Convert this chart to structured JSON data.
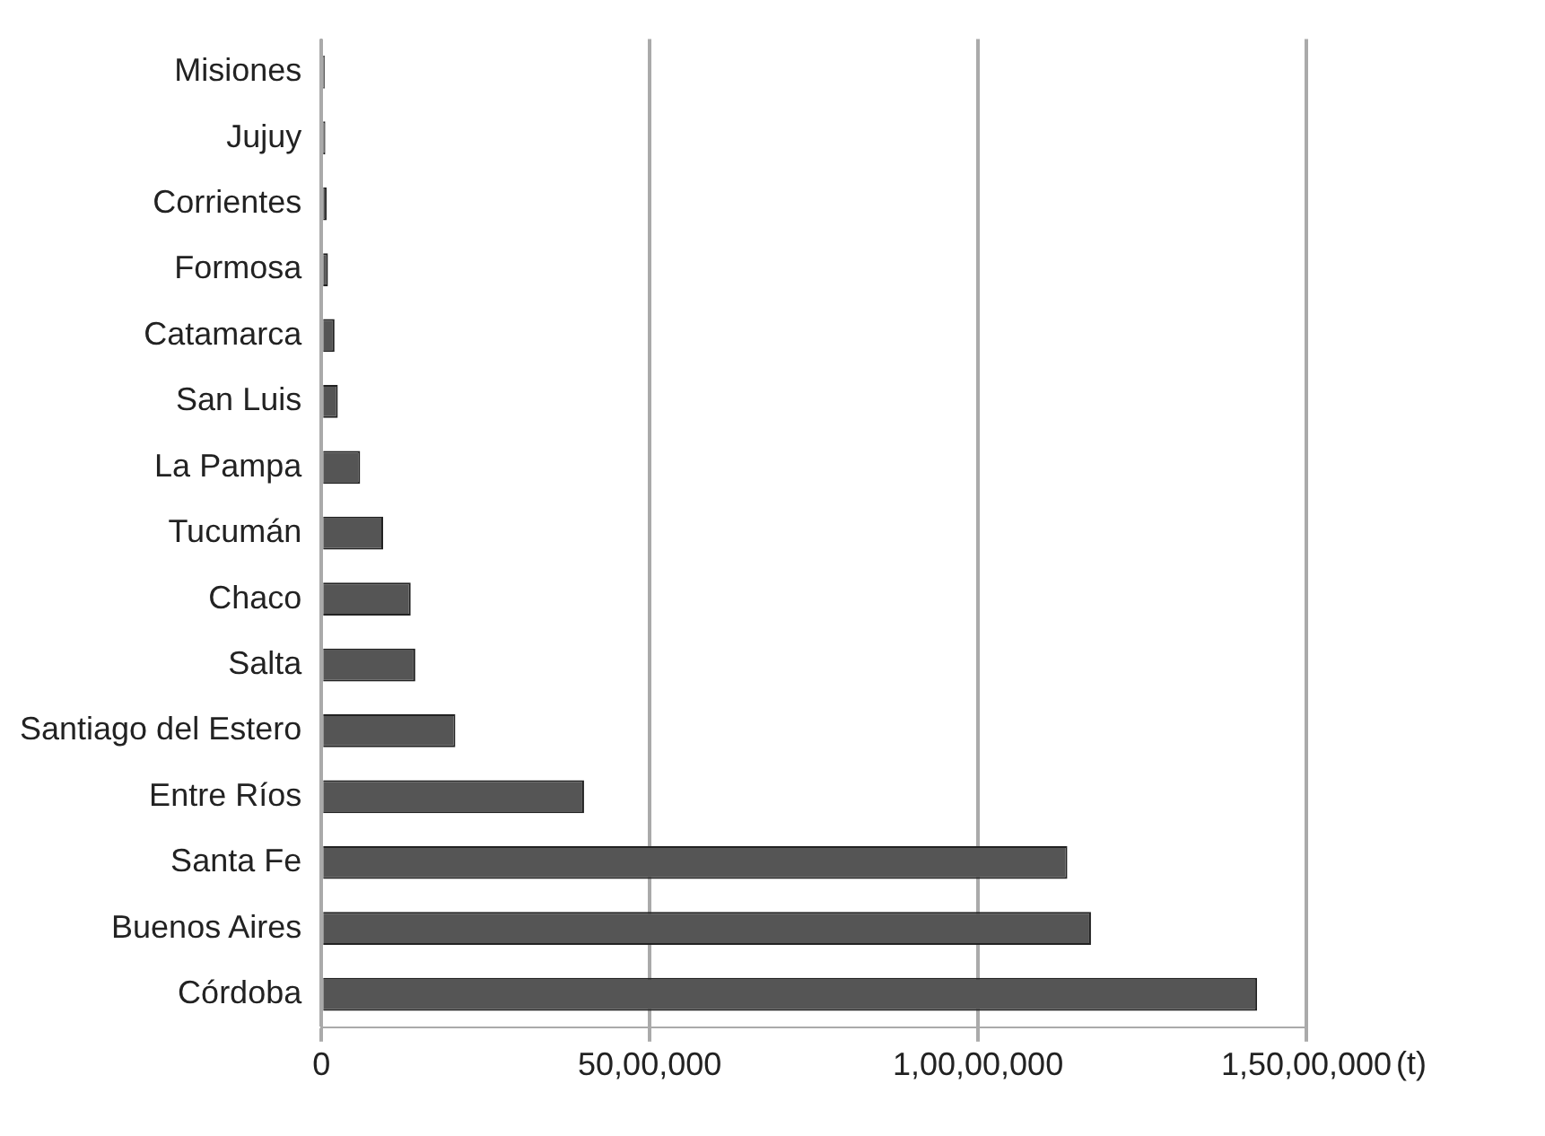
{
  "chart_data": {
    "type": "bar",
    "orientation": "horizontal",
    "xlabel": "(t)",
    "categories": [
      "Misiones",
      "Jujuy",
      "Corrientes",
      "Formosa",
      "Catamarca",
      "San Luis",
      "La Pampa",
      "Tucumán",
      "Chaco",
      "Salta",
      "Santiago del Estero",
      "Entre Ríos",
      "Santa Fe",
      "Buenos Aires",
      "Córdoba"
    ],
    "values": [
      50000,
      60000,
      80000,
      100000,
      200000,
      250000,
      590000,
      940000,
      1360000,
      1430000,
      2040000,
      4000000,
      11360000,
      11720000,
      14250000
    ],
    "color": "#555555",
    "xlim": [
      0,
      15000000
    ],
    "xticks": [
      0,
      {
        "value": 5000000,
        "label": "50,00,000"
      },
      {
        "value": 10000000,
        "label": "1,00,00,000"
      },
      {
        "value": 15000000,
        "label": "1,50,00,000"
      }
    ],
    "grid": "x"
  }
}
